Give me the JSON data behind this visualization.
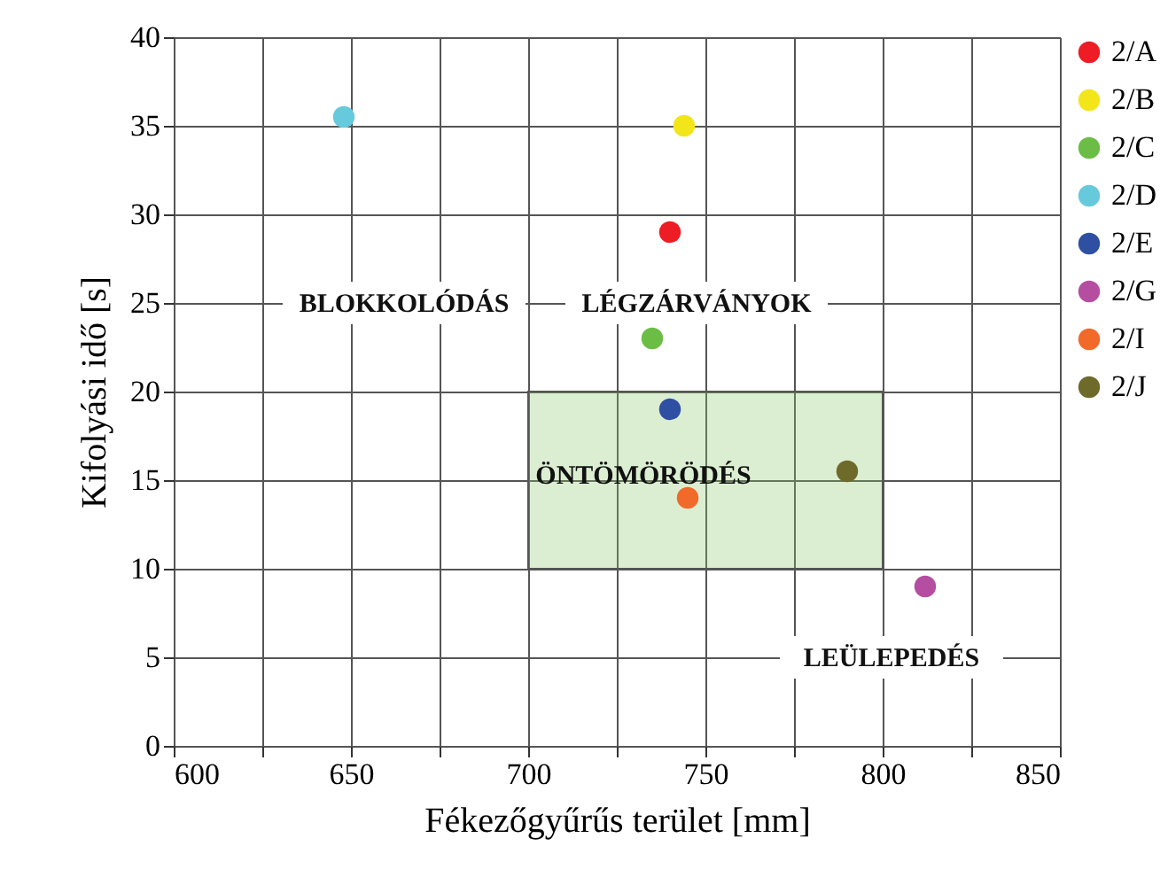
{
  "chart_data": {
    "type": "scatter",
    "xlabel": "Fékezőgyűrűs terület [mm]",
    "ylabel": "Kifolyási idő [s]",
    "xlim": [
      600,
      850
    ],
    "xticks": [
      600,
      {
        "value": 625,
        "label": null
      },
      650,
      {
        "value": 675,
        "label": null
      },
      700,
      {
        "value": 725,
        "label": null
      },
      750,
      {
        "value": 775,
        "label": null
      },
      800,
      {
        "value": 825,
        "label": null
      },
      850
    ],
    "ylim": [
      0,
      40
    ],
    "yticks": [
      0,
      5,
      10,
      15,
      20,
      25,
      30,
      35,
      40
    ],
    "grid": true,
    "legend": "right",
    "marker": "circle",
    "series": [
      {
        "name": "2/A",
        "color": "#ee1c25",
        "x": [
          740
        ],
        "values": [
          29
        ]
      },
      {
        "name": "2/B",
        "color": "#f2e61a",
        "x": [
          744
        ],
        "values": [
          35
        ]
      },
      {
        "name": "2/C",
        "color": "#6cbd45",
        "x": [
          735
        ],
        "values": [
          23
        ]
      },
      {
        "name": "2/D",
        "color": "#67c9dc",
        "x": [
          648
        ],
        "values": [
          35.5
        ]
      },
      {
        "name": "2/E",
        "color": "#2e4fa2",
        "x": [
          740
        ],
        "values": [
          19
        ]
      },
      {
        "name": "2/G",
        "color": "#b54ea0",
        "x": [
          812
        ],
        "values": [
          9
        ]
      },
      {
        "name": "2/I",
        "color": "#f26a2a",
        "x": [
          745
        ],
        "values": [
          14
        ]
      },
      {
        "name": "2/J",
        "color": "#6e6a2a",
        "x": [
          790
        ],
        "values": [
          15.5
        ]
      },
      {
        "type": "line",
        "color": "#8cc66a",
        "x": [
          700,
          800
        ],
        "values": [
          null,
          null
        ],
        "lower": [
          10,
          10
        ],
        "upper": [
          20,
          20
        ]
      }
    ],
    "annotations": [
      "BLOKKOLÓDÁS",
      "LÉGZÁRVÁNYOK",
      "ÖNTÖMÖRÖDÉS",
      "LEÜLEPEDÉS"
    ]
  }
}
